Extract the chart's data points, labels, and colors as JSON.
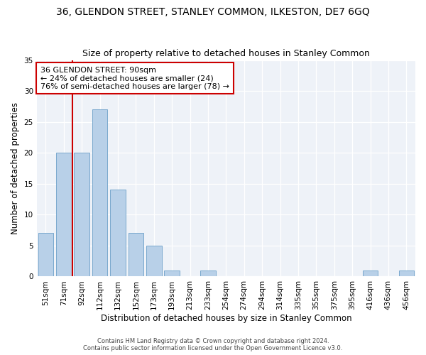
{
  "title": "36, GLENDON STREET, STANLEY COMMON, ILKESTON, DE7 6GQ",
  "subtitle": "Size of property relative to detached houses in Stanley Common",
  "xlabel": "Distribution of detached houses by size in Stanley Common",
  "ylabel": "Number of detached properties",
  "categories": [
    "51sqm",
    "71sqm",
    "92sqm",
    "112sqm",
    "132sqm",
    "152sqm",
    "173sqm",
    "193sqm",
    "213sqm",
    "233sqm",
    "254sqm",
    "274sqm",
    "294sqm",
    "314sqm",
    "335sqm",
    "355sqm",
    "375sqm",
    "395sqm",
    "416sqm",
    "436sqm",
    "456sqm"
  ],
  "values": [
    7,
    20,
    20,
    27,
    14,
    7,
    5,
    1,
    0,
    1,
    0,
    0,
    0,
    0,
    0,
    0,
    0,
    0,
    1,
    0,
    1
  ],
  "bar_color": "#b8d0e8",
  "bar_edge_color": "#6a9fc8",
  "vline_x_index": 2,
  "vline_color": "#cc0000",
  "annotation_text": "36 GLENDON STREET: 90sqm\n← 24% of detached houses are smaller (24)\n76% of semi-detached houses are larger (78) →",
  "annotation_box_color": "white",
  "annotation_box_edge": "#cc0000",
  "ylim": [
    0,
    35
  ],
  "yticks": [
    0,
    5,
    10,
    15,
    20,
    25,
    30,
    35
  ],
  "footer_line1": "Contains HM Land Registry data © Crown copyright and database right 2024.",
  "footer_line2": "Contains public sector information licensed under the Open Government Licence v3.0.",
  "bg_color": "#eef2f8",
  "title_fontsize": 10,
  "subtitle_fontsize": 9,
  "axis_label_fontsize": 8.5,
  "tick_fontsize": 7.5,
  "annotation_fontsize": 8,
  "footer_fontsize": 6
}
